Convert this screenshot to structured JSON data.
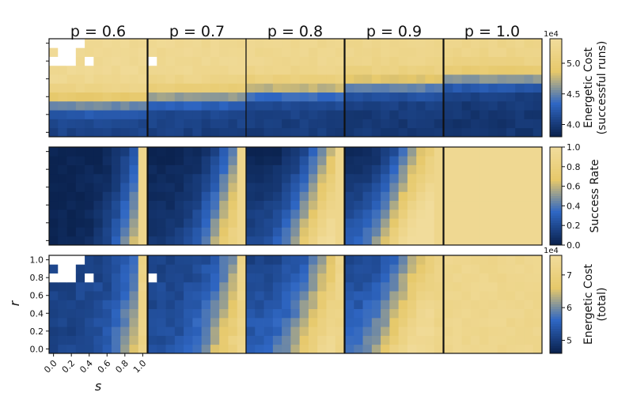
{
  "figure": {
    "column_titles": [
      "p = 0.6",
      "p = 0.7",
      "p = 0.8",
      "p = 0.9",
      "p = 1.0"
    ],
    "xlabel": "s",
    "ylabel": "r",
    "x_ticks": [
      "0.0",
      "0.2",
      "0.4",
      "0.6",
      "0.8",
      "1.0"
    ],
    "y_ticks": [
      "0.0",
      "0.2",
      "0.4",
      "0.6",
      "0.8",
      "1.0"
    ]
  },
  "colormap": {
    "name": "cividis-like",
    "stops": [
      "#0b2350",
      "#2f67c4",
      "#e6c86a",
      "#f1dc9b"
    ],
    "missing_color": "#ffffff"
  },
  "colorbars": [
    {
      "label_line1": "Energetic Cost",
      "label_line2": "(successful runs)",
      "multiplier": "1e4",
      "ticks": [
        "4.0",
        "4.5",
        "5.0"
      ],
      "tick_values": [
        4.0,
        4.5,
        5.0
      ],
      "range": [
        3.8,
        5.4
      ]
    },
    {
      "label_line1": "Success Rate",
      "label_line2": "",
      "multiplier": "",
      "ticks": [
        "0.0",
        "0.2",
        "0.4",
        "0.6",
        "0.8",
        "1.0"
      ],
      "tick_values": [
        0.0,
        0.2,
        0.4,
        0.6,
        0.8,
        1.0
      ],
      "range": [
        0.0,
        1.0
      ]
    },
    {
      "label_line1": "Energetic Cost",
      "label_line2": "(total)",
      "multiplier": "1e4",
      "ticks": [
        "5",
        "6",
        "7"
      ],
      "tick_values": [
        5,
        6,
        7
      ],
      "range": [
        4.6,
        7.6
      ]
    }
  ],
  "chart_data": {
    "type": "heatmap",
    "grid_size": 11,
    "s_values": [
      0.0,
      0.1,
      0.2,
      0.3,
      0.4,
      0.5,
      0.6,
      0.7,
      0.8,
      0.9,
      1.0
    ],
    "r_values": [
      0.0,
      0.1,
      0.2,
      0.3,
      0.4,
      0.5,
      0.6,
      0.7,
      0.8,
      0.9,
      1.0
    ],
    "p_values": [
      0.6,
      0.7,
      0.8,
      0.9,
      1.0
    ],
    "approximate_fields": {
      "energetic_cost_successful": "higher (≈5.3e4) at low r, lower (≈4.0e4) at high r; high-cost band grows larger as p increases",
      "success_rate": "≈0 for most (s,r) at p=0.6, increasing with s and p; ≈1 everywhere at p=1.0; s=1.0 column ≈1",
      "energetic_cost_total": "high (≈7e4) where success is low, ≈5e4 where success is high"
    },
    "missing_cells_p0.6": [
      [
        0.0,
        1.0
      ],
      [
        0.1,
        1.0
      ],
      [
        0.2,
        1.0
      ],
      [
        0.3,
        1.0
      ],
      [
        0.1,
        0.9
      ],
      [
        0.2,
        0.9
      ],
      [
        0.0,
        0.8
      ],
      [
        0.1,
        0.8
      ],
      [
        0.2,
        0.8
      ],
      [
        0.4,
        0.8
      ]
    ],
    "missing_cells_p0.7": [
      [
        0.0,
        0.8
      ]
    ]
  }
}
